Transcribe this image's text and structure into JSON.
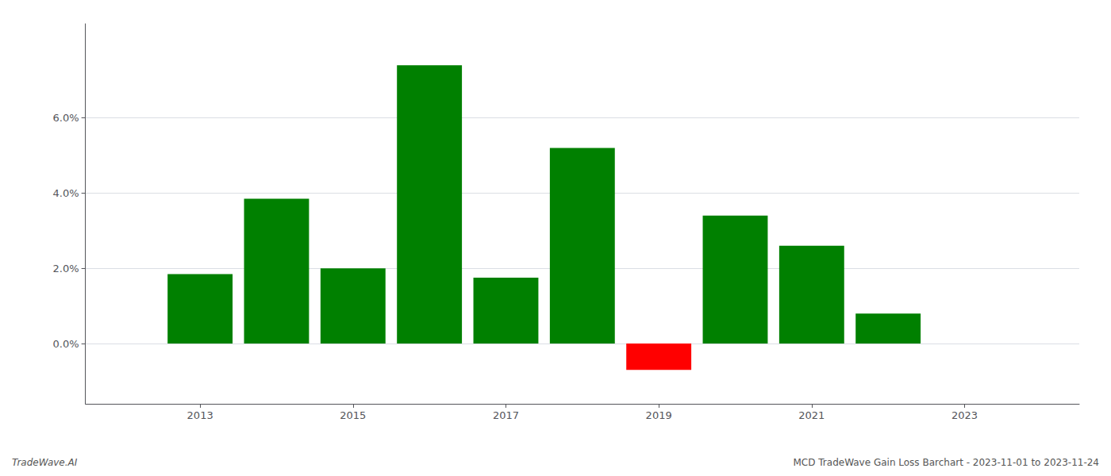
{
  "chart_data": {
    "type": "bar",
    "x": [
      2013,
      2014,
      2015,
      2016,
      2017,
      2018,
      2019,
      2020,
      2021,
      2022
    ],
    "values": [
      0.0185,
      0.0385,
      0.02,
      0.074,
      0.0175,
      0.052,
      -0.007,
      0.034,
      0.026,
      0.008
    ],
    "colors": [
      "#008000",
      "#008000",
      "#008000",
      "#008000",
      "#008000",
      "#008000",
      "#ff0000",
      "#008000",
      "#008000",
      "#008000"
    ],
    "xlim": [
      2011.5,
      2024.5
    ],
    "xticks": [
      2013,
      2015,
      2017,
      2019,
      2021,
      2023
    ],
    "ylim": [
      -0.016,
      0.085
    ],
    "yticks": [
      {
        "value": 0.0,
        "label": "0.0%"
      },
      {
        "value": 0.02,
        "label": "2.0%"
      },
      {
        "value": 0.04,
        "label": "4.0%"
      },
      {
        "value": 0.06,
        "label": "6.0%"
      }
    ],
    "grid": true,
    "annotations": [
      "TradeWave.AI",
      "MCD TradeWave Gain Loss Barchart - 2023-11-01 to 2023-11-24"
    ]
  }
}
